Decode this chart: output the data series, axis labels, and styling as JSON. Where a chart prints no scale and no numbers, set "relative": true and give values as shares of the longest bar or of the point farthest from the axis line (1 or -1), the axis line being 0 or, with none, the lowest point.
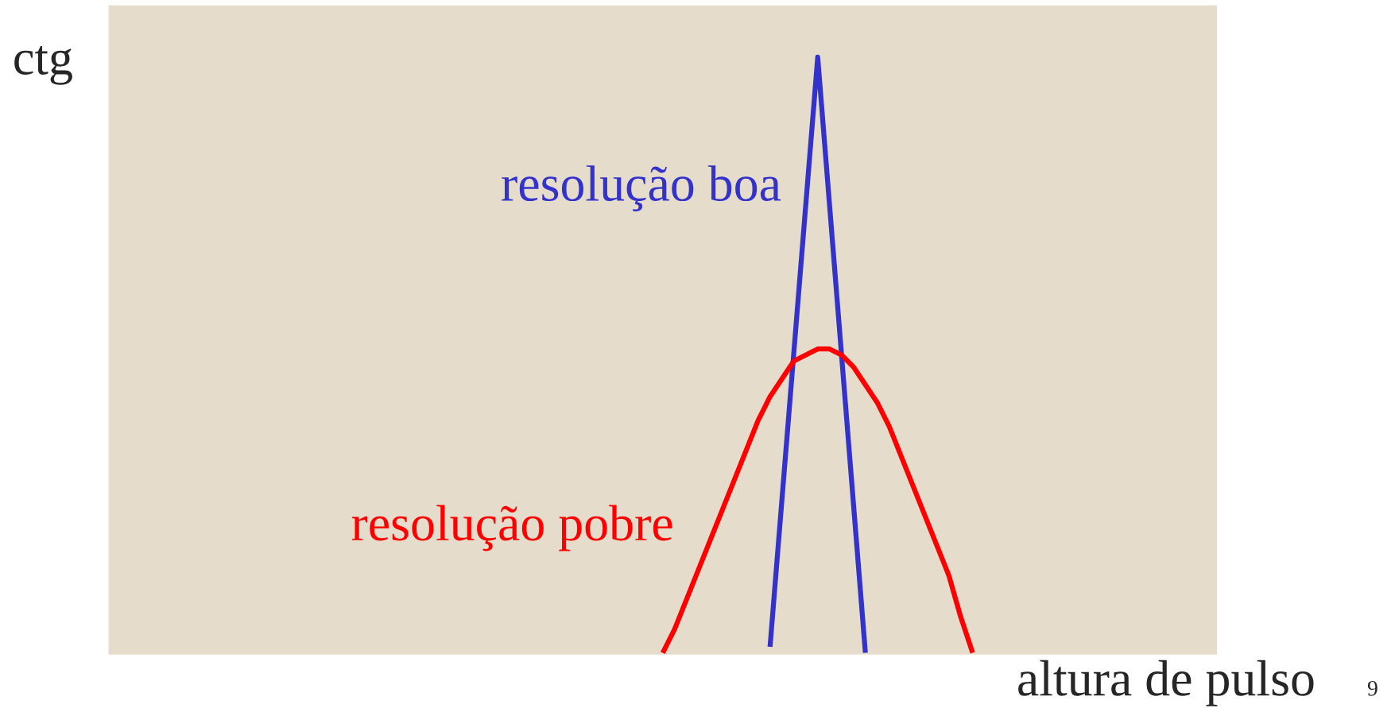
{
  "chart_data": {
    "type": "line",
    "relative": true,
    "xlabel": "altura de pulso",
    "ylabel": "ctg",
    "categories": [
      null,
      null,
      null,
      null,
      null,
      null,
      null,
      null,
      null,
      null,
      null,
      null,
      null,
      null,
      null,
      null,
      null,
      null,
      null,
      null,
      null,
      null,
      null,
      null,
      null,
      null,
      null,
      null,
      null,
      null,
      null,
      null,
      null,
      null,
      null,
      null,
      null,
      null,
      null,
      null,
      null,
      null,
      null,
      null,
      null,
      null,
      null,
      null,
      null,
      null,
      null,
      null,
      null,
      null,
      null,
      null,
      null,
      null,
      null,
      null,
      null,
      null,
      null,
      null,
      null,
      null,
      null,
      null,
      null,
      null,
      null,
      null,
      null,
      null,
      null,
      null,
      null,
      null,
      null,
      null,
      null,
      null,
      null,
      null,
      null,
      null,
      null,
      null,
      null,
      null,
      null,
      null,
      null
    ],
    "series": [
      {
        "name": "resolução boa",
        "color": "#3333cc",
        "values": [
          null,
          null,
          null,
          null,
          null,
          null,
          null,
          null,
          null,
          null,
          null,
          null,
          null,
          null,
          null,
          null,
          null,
          null,
          null,
          null,
          null,
          null,
          null,
          null,
          null,
          null,
          null,
          null,
          null,
          null,
          null,
          null,
          null,
          null,
          null,
          null,
          null,
          null,
          null,
          null,
          null,
          null,
          null,
          null,
          null,
          null,
          null,
          null,
          null,
          null,
          null,
          null,
          null,
          null,
          null,
          0.01,
          null,
          null,
          null,
          1,
          null,
          null,
          null,
          0,
          null,
          null,
          null,
          null,
          null,
          null,
          null,
          null,
          null,
          null,
          null,
          null,
          null,
          null,
          null,
          null,
          null,
          null,
          null,
          null,
          null,
          null,
          null,
          null,
          null,
          null,
          null,
          null,
          null
        ]
      },
      {
        "name": "resolução pobre",
        "color": "#ff0000",
        "values": [
          null,
          null,
          null,
          null,
          null,
          null,
          null,
          null,
          null,
          null,
          null,
          null,
          null,
          null,
          null,
          null,
          null,
          null,
          null,
          null,
          null,
          null,
          null,
          null,
          null,
          null,
          null,
          null,
          null,
          null,
          null,
          null,
          null,
          null,
          null,
          null,
          null,
          null,
          null,
          null,
          null,
          null,
          null,
          null,
          null,
          null,
          0,
          0.04,
          0.09,
          0.14,
          0.19,
          0.24,
          0.29,
          0.34,
          0.39,
          0.43,
          0.46,
          0.49,
          0.5,
          0.51,
          0.51,
          0.5,
          0.48,
          0.45,
          0.42,
          0.38,
          0.33,
          0.28,
          0.23,
          0.18,
          0.13,
          0.06,
          0,
          null,
          null,
          null,
          null,
          null,
          null,
          null,
          null,
          null,
          null,
          null,
          null,
          null,
          null,
          null,
          null,
          null,
          null,
          null,
          null
        ]
      }
    ],
    "annotations": [
      "9"
    ]
  }
}
